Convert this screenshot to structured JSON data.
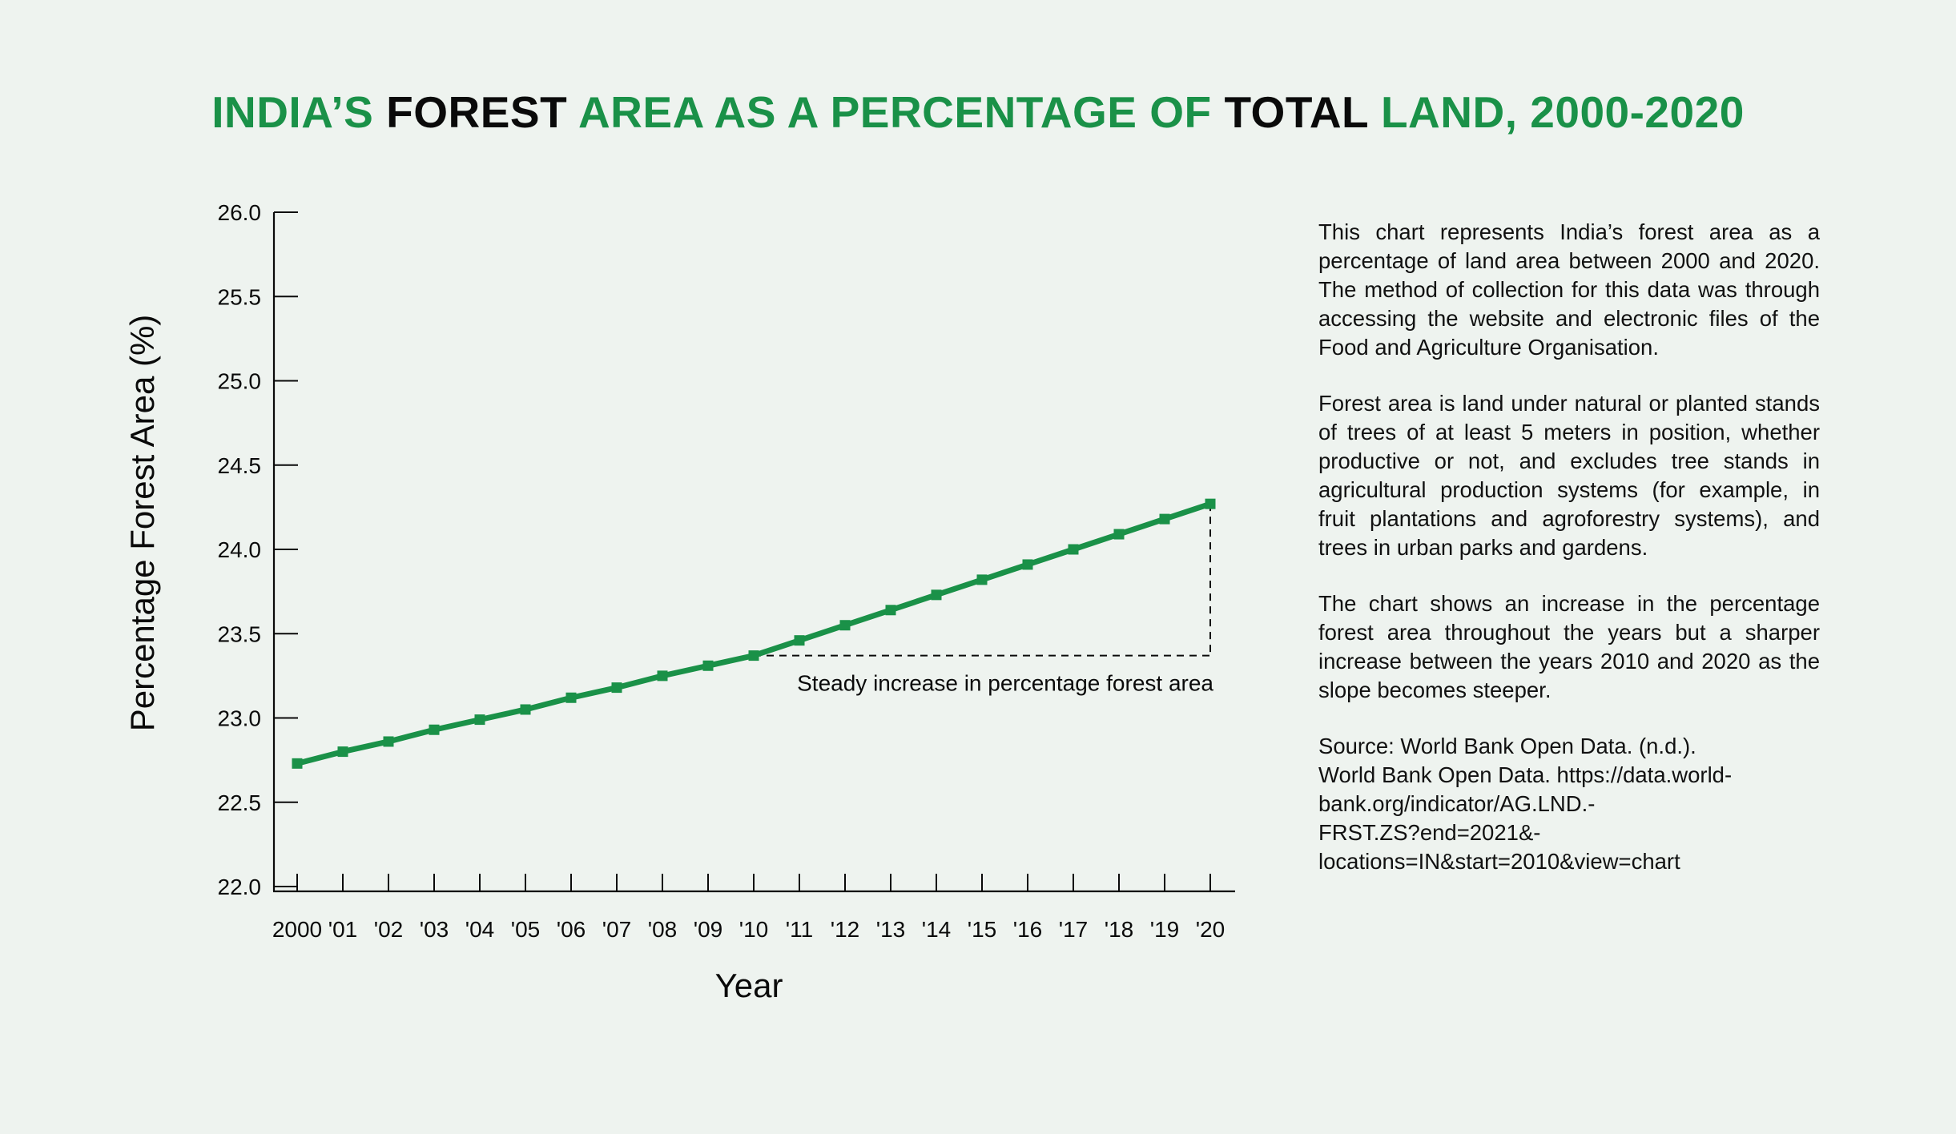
{
  "title": {
    "parts": [
      {
        "text": "INDIA’S ",
        "tone": "green"
      },
      {
        "text": "FOREST",
        "tone": "black"
      },
      {
        "text": " AREA AS A PERCENTAGE OF ",
        "tone": "green"
      },
      {
        "text": "TOTAL",
        "tone": "black"
      },
      {
        "text": " LAND, 2000-2020",
        "tone": "green"
      }
    ]
  },
  "colors": {
    "accent": "#1a9148",
    "text": "#0a0a0a",
    "background": "#eef3ef"
  },
  "description": {
    "p1": "This chart represents India’s forest area as a percentage of land area between 2000 and 2020. The method of collection for this data was through accessing the website and electronic files of the Food and Agriculture Organisation.",
    "p2": "Forest area is land under natural or planted stands of trees of at least 5 meters in position, whether productive or not, and excludes tree stands in agricultural production systems (for example, in fruit plantations and agroforestry systems), and trees in urban parks and gardens.",
    "p3": "The chart shows an increase in the percentage forest area throughout the years but a sharper increase between the years 2010 and 2020 as the slope becomes steeper.",
    "source_lines": [
      "Source: World Bank Open Data. (n.d.).",
      "World Bank Open Data. https://data.world-",
      "bank.org/indicator/AG.LND.-",
      "FRST.ZS?end=2021&-",
      "locations=IN&start=2010&view=chart"
    ]
  },
  "chart_data": {
    "type": "line",
    "xlabel": "Year",
    "ylabel": "Percentage Forest Area (%)",
    "ylim": [
      22.0,
      26.0
    ],
    "yticks": [
      "22.0",
      "22.5",
      "23.0",
      "23.5",
      "24.0",
      "24.5",
      "25.0",
      "25.5",
      "26.0"
    ],
    "categories": [
      "2000",
      "'01",
      "'02",
      "'03",
      "'04",
      "'05",
      "'06",
      "'07",
      "'08",
      "'09",
      "'10",
      "'11",
      "'12",
      "'13",
      "'14",
      "'15",
      "'16",
      "'17",
      "'18",
      "'19",
      "'20"
    ],
    "series": [
      {
        "values": [
          22.73,
          22.8,
          22.86,
          22.93,
          22.99,
          23.05,
          23.12,
          23.18,
          23.25,
          23.31,
          23.37,
          23.46,
          23.55,
          23.64,
          23.73,
          23.82,
          23.91,
          24.0,
          24.09,
          24.18,
          24.27
        ]
      }
    ],
    "annotation": {
      "text": "Steady increase in percentage forest area",
      "from_category": "'10",
      "to_category": "'20"
    },
    "grid": false,
    "legend": "none"
  }
}
